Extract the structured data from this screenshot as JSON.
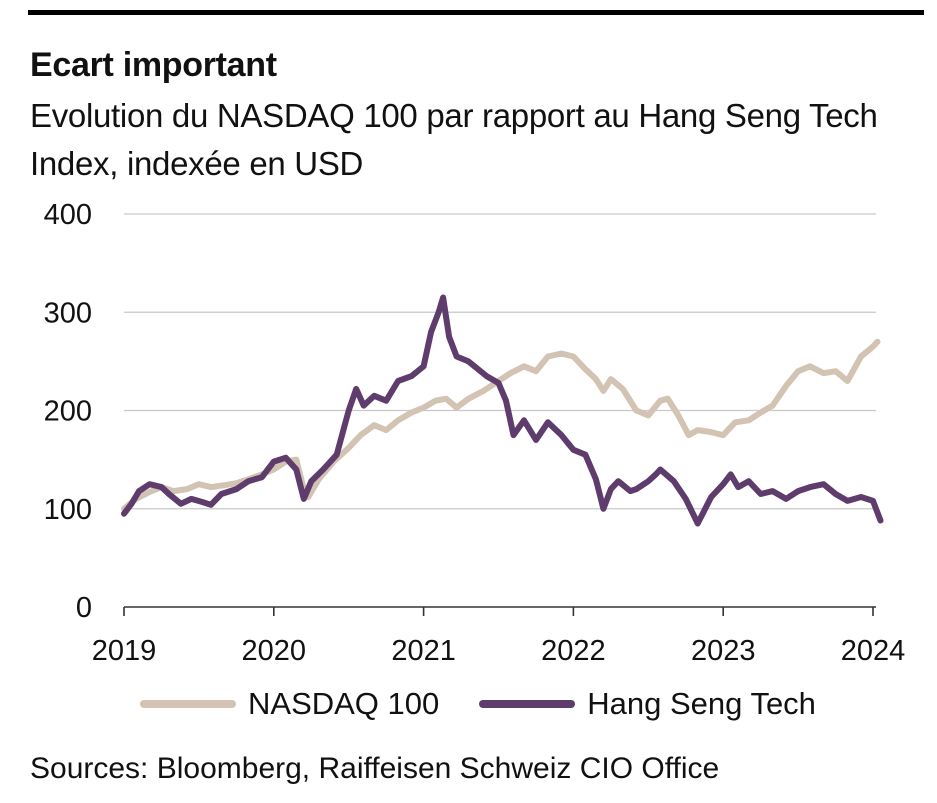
{
  "title": "Ecart important",
  "subtitle": "Evolution du NASDAQ 100 par rapport au Hang Seng Tech Index, indexée en USD",
  "source": "Sources: Bloomberg, Raiffeisen Schweiz CIO Office",
  "chart_data": {
    "type": "line",
    "title": "Ecart important",
    "subtitle": "Evolution du NASDAQ 100 par rapport au Hang Seng Tech Index, indexée en USD",
    "xlabel": "",
    "ylabel": "",
    "xlim": [
      2019,
      2024.02
    ],
    "ylim": [
      0,
      400
    ],
    "x_ticks": [
      "2019",
      "2020",
      "2021",
      "2022",
      "2023",
      "2024"
    ],
    "y_ticks": [
      "0",
      "100",
      "200",
      "300",
      "400"
    ],
    "grid": "horizontal",
    "legend_position": "bottom",
    "series": [
      {
        "name": "NASDAQ 100",
        "color": "#d2c3b2",
        "points": [
          [
            2019.0,
            100
          ],
          [
            2019.08,
            110
          ],
          [
            2019.17,
            117
          ],
          [
            2019.25,
            122
          ],
          [
            2019.33,
            118
          ],
          [
            2019.42,
            120
          ],
          [
            2019.5,
            125
          ],
          [
            2019.58,
            122
          ],
          [
            2019.67,
            124
          ],
          [
            2019.75,
            126
          ],
          [
            2019.83,
            130
          ],
          [
            2019.92,
            135
          ],
          [
            2020.0,
            140
          ],
          [
            2020.08,
            148
          ],
          [
            2020.15,
            150
          ],
          [
            2020.2,
            120
          ],
          [
            2020.23,
            112
          ],
          [
            2020.3,
            130
          ],
          [
            2020.4,
            148
          ],
          [
            2020.5,
            162
          ],
          [
            2020.58,
            175
          ],
          [
            2020.67,
            185
          ],
          [
            2020.75,
            180
          ],
          [
            2020.83,
            190
          ],
          [
            2020.92,
            198
          ],
          [
            2021.0,
            203
          ],
          [
            2021.08,
            210
          ],
          [
            2021.15,
            212
          ],
          [
            2021.22,
            203
          ],
          [
            2021.3,
            212
          ],
          [
            2021.4,
            220
          ],
          [
            2021.5,
            230
          ],
          [
            2021.58,
            238
          ],
          [
            2021.67,
            245
          ],
          [
            2021.75,
            240
          ],
          [
            2021.83,
            255
          ],
          [
            2021.92,
            258
          ],
          [
            2022.0,
            255
          ],
          [
            2022.08,
            242
          ],
          [
            2022.15,
            232
          ],
          [
            2022.2,
            220
          ],
          [
            2022.25,
            232
          ],
          [
            2022.33,
            222
          ],
          [
            2022.42,
            200
          ],
          [
            2022.5,
            195
          ],
          [
            2022.58,
            210
          ],
          [
            2022.63,
            212
          ],
          [
            2022.7,
            195
          ],
          [
            2022.77,
            175
          ],
          [
            2022.83,
            180
          ],
          [
            2022.92,
            178
          ],
          [
            2023.0,
            175
          ],
          [
            2023.08,
            188
          ],
          [
            2023.17,
            190
          ],
          [
            2023.25,
            198
          ],
          [
            2023.33,
            205
          ],
          [
            2023.42,
            225
          ],
          [
            2023.5,
            240
          ],
          [
            2023.58,
            245
          ],
          [
            2023.67,
            238
          ],
          [
            2023.75,
            240
          ],
          [
            2023.83,
            230
          ],
          [
            2023.92,
            255
          ],
          [
            2024.0,
            265
          ],
          [
            2024.03,
            270
          ]
        ]
      },
      {
        "name": "Hang Seng Tech",
        "color": "#5e3c6b",
        "points": [
          [
            2019.0,
            95
          ],
          [
            2019.05,
            105
          ],
          [
            2019.1,
            118
          ],
          [
            2019.17,
            125
          ],
          [
            2019.25,
            122
          ],
          [
            2019.3,
            115
          ],
          [
            2019.38,
            105
          ],
          [
            2019.45,
            110
          ],
          [
            2019.52,
            107
          ],
          [
            2019.58,
            104
          ],
          [
            2019.65,
            115
          ],
          [
            2019.75,
            120
          ],
          [
            2019.83,
            128
          ],
          [
            2019.92,
            132
          ],
          [
            2020.0,
            148
          ],
          [
            2020.08,
            152
          ],
          [
            2020.15,
            140
          ],
          [
            2020.2,
            110
          ],
          [
            2020.25,
            128
          ],
          [
            2020.33,
            140
          ],
          [
            2020.42,
            155
          ],
          [
            2020.5,
            200
          ],
          [
            2020.55,
            222
          ],
          [
            2020.6,
            205
          ],
          [
            2020.67,
            215
          ],
          [
            2020.75,
            210
          ],
          [
            2020.83,
            230
          ],
          [
            2020.92,
            235
          ],
          [
            2021.0,
            245
          ],
          [
            2021.05,
            280
          ],
          [
            2021.1,
            300
          ],
          [
            2021.13,
            315
          ],
          [
            2021.17,
            275
          ],
          [
            2021.22,
            255
          ],
          [
            2021.3,
            250
          ],
          [
            2021.38,
            240
          ],
          [
            2021.42,
            235
          ],
          [
            2021.5,
            228
          ],
          [
            2021.55,
            210
          ],
          [
            2021.6,
            175
          ],
          [
            2021.67,
            190
          ],
          [
            2021.75,
            170
          ],
          [
            2021.83,
            188
          ],
          [
            2021.92,
            175
          ],
          [
            2022.0,
            160
          ],
          [
            2022.08,
            155
          ],
          [
            2022.15,
            130
          ],
          [
            2022.2,
            100
          ],
          [
            2022.25,
            120
          ],
          [
            2022.3,
            128
          ],
          [
            2022.38,
            118
          ],
          [
            2022.42,
            120
          ],
          [
            2022.5,
            128
          ],
          [
            2022.55,
            135
          ],
          [
            2022.58,
            140
          ],
          [
            2022.67,
            128
          ],
          [
            2022.75,
            110
          ],
          [
            2022.83,
            85
          ],
          [
            2022.92,
            112
          ],
          [
            2023.0,
            125
          ],
          [
            2023.05,
            135
          ],
          [
            2023.1,
            122
          ],
          [
            2023.17,
            128
          ],
          [
            2023.25,
            115
          ],
          [
            2023.33,
            118
          ],
          [
            2023.42,
            110
          ],
          [
            2023.5,
            118
          ],
          [
            2023.58,
            122
          ],
          [
            2023.67,
            125
          ],
          [
            2023.75,
            115
          ],
          [
            2023.83,
            108
          ],
          [
            2023.92,
            112
          ],
          [
            2024.0,
            108
          ],
          [
            2024.02,
            100
          ],
          [
            2024.05,
            88
          ]
        ]
      }
    ]
  }
}
